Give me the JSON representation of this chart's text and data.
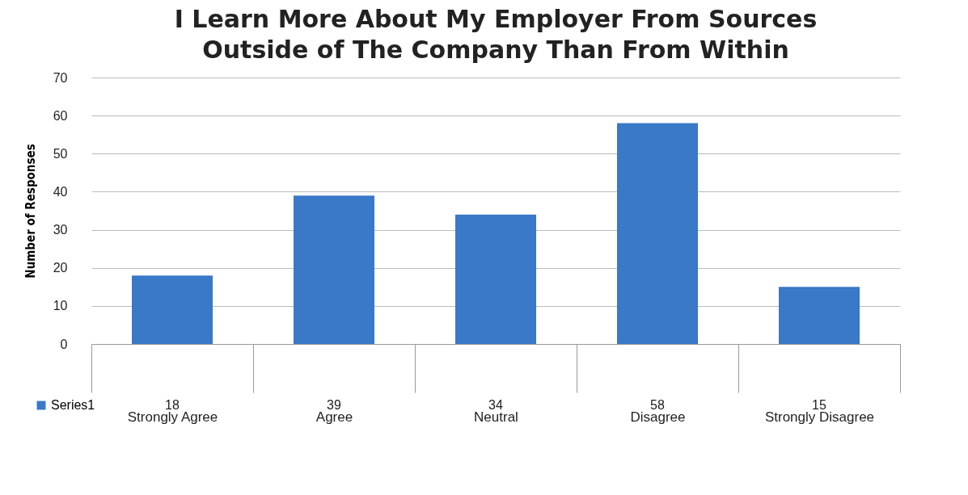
{
  "chart_data": {
    "type": "bar",
    "title": "I Learn More About My Employer From Sources Outside of The Company Than From Within",
    "ylabel": "Number of Responses",
    "categories": [
      "Strongly Agree",
      "Agree",
      "Neutral",
      "Disagree",
      "Strongly Disagree"
    ],
    "series": [
      {
        "name": "Series1",
        "color": "#3a78c8",
        "values": [
          18,
          39,
          34,
          58,
          15
        ]
      }
    ],
    "ylim": [
      0,
      70
    ],
    "yticks": [
      0,
      10,
      20,
      30,
      40,
      50,
      60,
      70
    ],
    "grid": "y",
    "legend": "bottom left",
    "data_labels": true
  }
}
